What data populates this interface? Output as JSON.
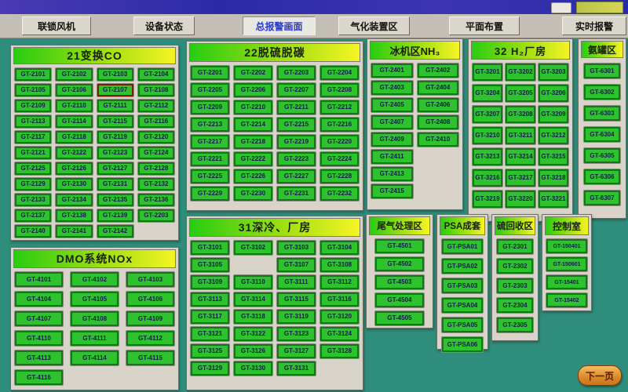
{
  "nav": {
    "items": [
      "联锁风机",
      "设备状态",
      "总报警画面",
      "气化装置区",
      "平面布置",
      "实时报警"
    ],
    "active": "总报警画面"
  },
  "next_page": {
    "label": "下一页"
  },
  "alarm_tags": [
    "GT-2107"
  ],
  "colors": {
    "background_teal": "#2F8D7C",
    "button_green": "#2EC22E",
    "button_border_green": "#0F7A14",
    "alarm_border": "#7A1F00",
    "header_gradient_left": "#28CC12",
    "header_gradient_right": "#F6F424",
    "panel_gray": "#D9D4CA",
    "active_nav_text": "#2A3ACC",
    "next_button_orange": "#D9892B"
  },
  "panels": [
    {
      "key": "co21",
      "title": "21变换CO",
      "buttons": [
        "GT-2101",
        "GT-2102",
        "GT-2103",
        "GT-2104",
        "GT-2105",
        "GT-2106",
        "GT-2107",
        "GT-2108",
        "GT-2109",
        "GT-2110",
        "GT-2111",
        "GT-2112",
        "GT-2113",
        "GT-2114",
        "GT-2115",
        "GT-2116",
        "GT-2117",
        "GT-2118",
        "GT-2119",
        "GT-2120",
        "GT-2121",
        "GT-2122",
        "GT-2123",
        "GT-2124",
        "GT-2125",
        "GT-2126",
        "GT-2127",
        "GT-2128",
        "GT-2129",
        "GT-2130",
        "GT-2131",
        "GT-2132",
        "GT-2133",
        "GT-2134",
        "GT-2135",
        "GT-2136",
        "GT-2137",
        "GT-2138",
        "GT-2139",
        "GT-2203",
        "GT-2140",
        "GT-2141",
        "GT-2142"
      ]
    },
    {
      "key": "dmo",
      "title": "DMO系统NOx",
      "buttons": [
        "GT-4101",
        "GT-4102",
        "GT-4103",
        "GT-4104",
        "GT-4105",
        "GT-4106",
        "GT-4107",
        "GT-4108",
        "GT-4109",
        "GT-4110",
        "GT-4111",
        "GT-4112",
        "GT-4113",
        "GT-4114",
        "GT-4115",
        "GT-4116"
      ]
    },
    {
      "key": "tt22",
      "title": "22脱硫脱碳",
      "buttons": [
        "GT-2201",
        "GT-2202",
        "GT-2203",
        "GT-2204",
        "GT-2205",
        "GT-2206",
        "GT-2207",
        "GT-2208",
        "GT-2209",
        "GT-2210",
        "GT-2211",
        "GT-2212",
        "GT-2213",
        "GT-2214",
        "GT-2215",
        "GT-2216",
        "GT-2217",
        "GT-2218",
        "GT-2219",
        "GT-2220",
        "GT-2221",
        "GT-2222",
        "GT-2223",
        "GT-2224",
        "GT-2225",
        "GT-2226",
        "GT-2227",
        "GT-2228",
        "GT-2229",
        "GT-2230",
        "GT-2231",
        "GT-2232"
      ]
    },
    {
      "key": "cryo31",
      "title": "31深冷、厂房",
      "buttons": [
        "GT-3101",
        "GT-3102",
        "GT-3103",
        "GT-3104",
        "GT-3105",
        "",
        "GT-3107",
        "GT-3108",
        "GT-3109",
        "GT-3110",
        "GT-3111",
        "GT-3112",
        "GT-3113",
        "GT-3114",
        "GT-3115",
        "GT-3116",
        "GT-3117",
        "GT-3118",
        "GT-3119",
        "GT-3120",
        "GT-3121",
        "GT-3122",
        "GT-3123",
        "GT-3124",
        "GT-3125",
        "GT-3126",
        "GT-3127",
        "GT-3128",
        "GT-3129",
        "GT-3130",
        "GT-3131"
      ]
    },
    {
      "key": "nh3",
      "title": "冰机区NH₃",
      "buttons": [
        "GT-2401",
        "GT-2402",
        "GT-2403",
        "GT-2404",
        "GT-2405",
        "GT-2406",
        "GT-2407",
        "GT-2408",
        "GT-2409",
        "GT-2410",
        "GT-2411",
        "",
        "GT-2413",
        "",
        "GT-2415"
      ]
    },
    {
      "key": "h2",
      "title": "32 H₂厂房",
      "buttons": [
        "GT-3201",
        "GT-3202",
        "GT-3203",
        "GT-3204",
        "GT-3205",
        "GT-3206",
        "GT-3207",
        "GT-3208",
        "GT-3209",
        "GT-3210",
        "GT-3211",
        "GT-3212",
        "GT-3213",
        "GT-3214",
        "GT-3215",
        "GT-3216",
        "GT-3217",
        "GT-3218",
        "GT-3219",
        "GT-3220",
        "GT-3221"
      ]
    },
    {
      "key": "tank",
      "title": "氨罐区",
      "buttons": [
        "GT-6301",
        "GT-6302",
        "GT-6303",
        "GT-6304",
        "GT-6305",
        "GT-6306",
        "GT-6307"
      ]
    },
    {
      "key": "tail",
      "title": "尾气处理区",
      "buttons": [
        "GT-4501",
        "GT-4502",
        "GT-4503",
        "GT-4504",
        "GT-4505"
      ]
    },
    {
      "key": "psa",
      "title": "PSA成套",
      "buttons": [
        "GT-PSA01",
        "GT-PSA02",
        "GT-PSA03",
        "GT-PSA04",
        "GT-PSA05",
        "GT-PSA06"
      ]
    },
    {
      "key": "sulfur",
      "title": "硫回收区",
      "buttons": [
        "GT-2301",
        "GT-2302",
        "GT-2303",
        "GT-2304",
        "GT-2305"
      ]
    },
    {
      "key": "ctrl",
      "title": "控制室",
      "buttons": [
        "GT-150401",
        "GT-150601",
        "GT-15401",
        "GT-15402"
      ]
    }
  ]
}
